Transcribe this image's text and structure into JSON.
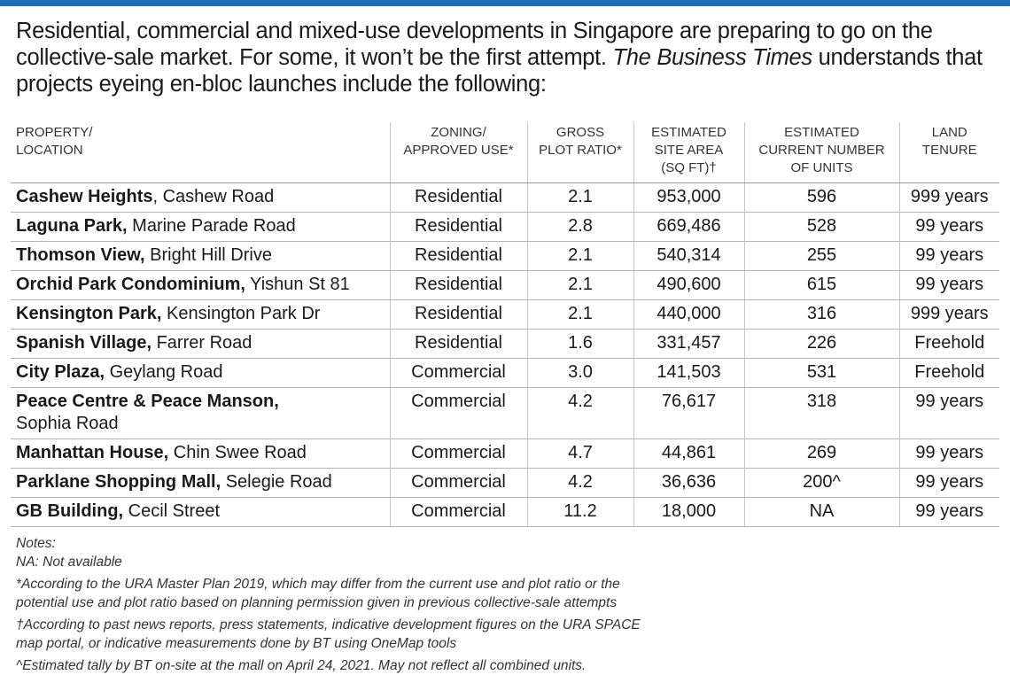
{
  "accent_color": "#1f6fb5",
  "intro": {
    "part1": "Residential, commercial and mixed-use developments in Singapore are preparing to go on the collective-sale market. For some, it won’t be the first attempt. ",
    "publication": "The Business Times",
    "part2": " understands that projects eyeing en-bloc launches include the following:"
  },
  "table": {
    "headers": {
      "property": [
        "PROPERTY/",
        "LOCATION"
      ],
      "zoning": [
        "ZONING/",
        "APPROVED USE*"
      ],
      "plot_ratio": [
        "GROSS",
        "PLOT RATIO*"
      ],
      "site_area": [
        "ESTIMATED",
        "SITE AREA",
        "(SQ FT)†"
      ],
      "units": [
        "ESTIMATED",
        "CURRENT NUMBER",
        "OF UNITS"
      ],
      "tenure": [
        "LAND",
        "TENURE"
      ]
    },
    "rows": [
      {
        "name": "Cashew Heights",
        "location": ", Cashew Road",
        "zoning": "Residential",
        "plot_ratio": "2.1",
        "site_area": "953,000",
        "units": "596",
        "tenure": "999 years"
      },
      {
        "name": "Laguna Park,",
        "location": " Marine Parade Road",
        "zoning": "Residential",
        "plot_ratio": "2.8",
        "site_area": "669,486",
        "units": "528",
        "tenure": "99 years"
      },
      {
        "name": "Thomson View,",
        "location": " Bright Hill Drive",
        "zoning": "Residential",
        "plot_ratio": "2.1",
        "site_area": "540,314",
        "units": "255",
        "tenure": "99 years"
      },
      {
        "name": "Orchid Park Condominium,",
        "location": " Yishun St 81",
        "zoning": "Residential",
        "plot_ratio": "2.1",
        "site_area": "490,600",
        "units": "615",
        "tenure": "99 years"
      },
      {
        "name": "Kensington Park,",
        "location": " Kensington Park Dr",
        "zoning": "Residential",
        "plot_ratio": "2.1",
        "site_area": "440,000",
        "units": "316",
        "tenure": "999 years"
      },
      {
        "name": "Spanish Village,",
        "location": " Farrer Road",
        "zoning": "Residential",
        "plot_ratio": "1.6",
        "site_area": "331,457",
        "units": "226",
        "tenure": "Freehold"
      },
      {
        "name": "City Plaza,",
        "location": " Geylang Road",
        "zoning": "Commercial",
        "plot_ratio": "3.0",
        "site_area": "141,503",
        "units": "531",
        "tenure": "Freehold"
      },
      {
        "name": "Peace Centre & Peace Manson,",
        "location": " Sophia Road",
        "zoning": "Commercial",
        "plot_ratio": "4.2",
        "site_area": "76,617",
        "units": "318",
        "tenure": "99 years"
      },
      {
        "name": "Manhattan House,",
        "location": " Chin Swee Road",
        "zoning": "Commercial",
        "plot_ratio": "4.7",
        "site_area": "44,861",
        "units": "269",
        "tenure": "99 years"
      },
      {
        "name": "Parklane Shopping Mall,",
        "location": " Selegie Road",
        "zoning": "Commercial",
        "plot_ratio": "4.2",
        "site_area": "36,636",
        "units": "200^",
        "tenure": "99 years"
      },
      {
        "name": "GB Building,",
        "location": " Cecil Street",
        "zoning": "Commercial",
        "plot_ratio": "11.2",
        "site_area": "18,000",
        "units": "NA",
        "tenure": "99 years"
      }
    ]
  },
  "notes": {
    "heading": "Notes:",
    "na": "NA: Not available",
    "asterisk_line1": "*According to the URA Master Plan 2019, which may differ from the current use and plot ratio or the",
    "asterisk_line2": "potential use and plot ratio based on planning permission given in previous collective-sale attempts",
    "dagger_line1": "†According to past news reports, press statements, indicative development figures on the URA SPACE",
    "dagger_line2": "map portal, or indicative measurements done by BT using OneMap tools",
    "caret": "^Estimated tally by BT on-site at the mall on April 24, 2021. May not reflect all combined units."
  }
}
